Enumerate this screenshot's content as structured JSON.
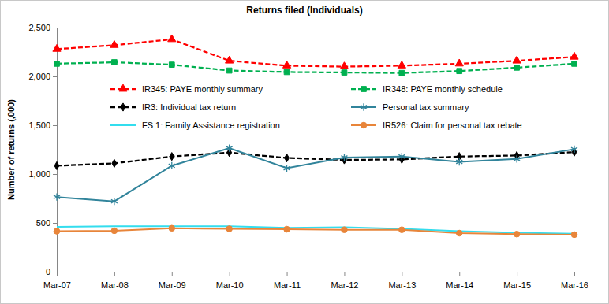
{
  "chart_data": {
    "type": "line",
    "title": "Returns filed (Individuals)",
    "y_label": "Number of returns (,000)",
    "categories": [
      "Mar-07",
      "Mar-08",
      "Mar-09",
      "Mar-10",
      "Mar-11",
      "Mar-12",
      "Mar-13",
      "Mar-14",
      "Mar-15",
      "Mar-16"
    ],
    "series": [
      {
        "name": "IR345: PAYE monthly summary",
        "color": "#ff0000",
        "marker": "triangle",
        "line_style": "dashed",
        "values": [
          2280,
          2320,
          2380,
          2160,
          2110,
          2100,
          2110,
          2130,
          2160,
          2200
        ]
      },
      {
        "name": "IR348: PAYE monthly schedule",
        "color": "#00b050",
        "marker": "square",
        "line_style": "dashed",
        "values": [
          2130,
          2145,
          2120,
          2060,
          2045,
          2040,
          2035,
          2055,
          2090,
          2130
        ]
      },
      {
        "name": "IR3: Individual tax return",
        "color": "#000000",
        "marker": "diamond",
        "line_style": "dashed",
        "values": [
          1085,
          1110,
          1180,
          1220,
          1165,
          1145,
          1150,
          1180,
          1190,
          1225
        ]
      },
      {
        "name": "Personal tax summary",
        "color": "#31849b",
        "marker": "star",
        "line_style": "solid",
        "values": [
          765,
          720,
          1085,
          1265,
          1060,
          1170,
          1180,
          1125,
          1155,
          1255
        ]
      },
      {
        "name": "FS 1: Family Assistance registration",
        "color": "#33ddee",
        "marker": "none",
        "line_style": "solid",
        "values": [
          460,
          465,
          465,
          465,
          450,
          455,
          440,
          415,
          400,
          390
        ]
      },
      {
        "name": "IR526: Claim for personal tax rebate",
        "color": "#e8853a",
        "marker": "circle",
        "line_style": "solid",
        "values": [
          415,
          420,
          445,
          440,
          435,
          430,
          430,
          395,
          385,
          380
        ]
      }
    ],
    "ylim": [
      0,
      2500
    ],
    "yticks": [
      0,
      500,
      {
        "value": 1000,
        "label": "1,000"
      },
      {
        "value": 1500,
        "label": "1,500"
      },
      {
        "value": 2000,
        "label": "2,000"
      },
      {
        "value": 2500,
        "label": "2,500"
      }
    ],
    "grid": false,
    "legend": "top"
  }
}
